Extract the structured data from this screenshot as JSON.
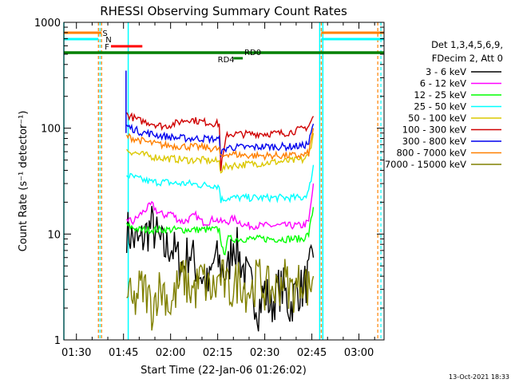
{
  "chart_data": {
    "type": "line",
    "title": "RHESSI Observing Summary Count Rates",
    "xlabel": "Start Time (22-Jan-06 01:26:02)",
    "ylabel": "Count Rate (s⁻¹ detector⁻¹)",
    "y_scale": "log",
    "ylim": [
      1,
      1000
    ],
    "xlim_minutes_after_0126": [
      0,
      102
    ],
    "x_ticks": [
      "01:30",
      "01:45",
      "02:00",
      "02:15",
      "02:30",
      "02:45",
      "03:00"
    ],
    "x_tick_minutes": [
      4,
      19,
      34,
      49,
      64,
      79,
      94
    ],
    "y_ticks": [
      "1",
      "10",
      "100",
      "1000"
    ],
    "y_tick_values": [
      1,
      10,
      100,
      1000
    ],
    "legend_header": [
      "Det 1,3,4,5,6,9,",
      "FDecim 2, Att 0"
    ],
    "series": [
      {
        "name": "3 - 6 keV",
        "color": "#000000",
        "level": 7,
        "x": [
          20,
          22,
          24,
          26,
          28,
          30,
          32,
          34,
          36,
          38,
          40,
          42,
          44,
          46,
          48,
          50,
          52,
          54,
          56,
          58,
          60,
          62,
          64,
          66,
          68,
          70,
          72,
          74,
          76,
          78,
          79.5
        ],
        "y": [
          11,
          9,
          8,
          10,
          12,
          9,
          7,
          8,
          6,
          5,
          7,
          5,
          4,
          3,
          6,
          5,
          4,
          9,
          6,
          4,
          3,
          2,
          3,
          2,
          3,
          3,
          2,
          3,
          3,
          4,
          6
        ]
      },
      {
        "name": "6 - 12 keV",
        "color": "#ff00ff",
        "level": 13,
        "x": [
          20,
          22,
          24,
          26,
          28,
          30,
          32,
          34,
          36,
          38,
          40,
          42,
          44,
          46,
          48,
          50,
          52,
          54,
          56,
          58,
          60,
          62,
          64,
          66,
          68,
          70,
          72,
          74,
          76,
          78,
          79.5
        ],
        "y": [
          14,
          13,
          15,
          17,
          19,
          16,
          15,
          16,
          14,
          13,
          14,
          15,
          13,
          13,
          14,
          13,
          13,
          14,
          13,
          12,
          12,
          12,
          12,
          12,
          12,
          12,
          12,
          12,
          12,
          13,
          30
        ]
      },
      {
        "name": "12 - 25 keV",
        "color": "#00ff00",
        "level": 11,
        "x": [
          20,
          24,
          28,
          32,
          36,
          40,
          44,
          48,
          49.5,
          51,
          52,
          56,
          60,
          64,
          68,
          72,
          76,
          78,
          79.5
        ],
        "y": [
          12,
          11,
          11,
          11,
          11,
          11,
          11,
          11,
          11,
          6,
          9,
          9,
          9,
          9,
          9,
          9,
          9,
          10,
          18
        ]
      },
      {
        "name": "25 - 50 keV",
        "color": "#00ffff",
        "level": 30,
        "x": [
          20,
          24,
          28,
          32,
          36,
          40,
          44,
          48,
          49.5,
          50,
          52,
          56,
          60,
          64,
          68,
          72,
          76,
          78,
          79.5
        ],
        "y": [
          36,
          33,
          31,
          31,
          30,
          30,
          29,
          29,
          28,
          21,
          22,
          22,
          22,
          22,
          22,
          22,
          22,
          25,
          45
        ]
      },
      {
        "name": "50 - 100 keV",
        "color": "#dcc800",
        "level": 50,
        "x": [
          20,
          24,
          28,
          32,
          36,
          40,
          44,
          48,
          49.5,
          50,
          52,
          56,
          60,
          64,
          68,
          72,
          76,
          78,
          79.5
        ],
        "y": [
          62,
          57,
          54,
          52,
          51,
          50,
          50,
          49,
          48,
          40,
          44,
          45,
          46,
          47,
          48,
          49,
          50,
          55,
          90
        ]
      },
      {
        "name": "100 - 300 keV",
        "color": "#d00000",
        "level": 120,
        "x": [
          20,
          22,
          24,
          26,
          28,
          30,
          32,
          34,
          36,
          38,
          40,
          42,
          44,
          46,
          48,
          49.5,
          50,
          52,
          54,
          56,
          58,
          60,
          62,
          64,
          66,
          68,
          70,
          72,
          74,
          76,
          78,
          79.5
        ],
        "y": [
          135,
          126,
          118,
          115,
          112,
          107,
          104,
          108,
          112,
          118,
          122,
          118,
          115,
          113,
          111,
          110,
          42,
          88,
          88,
          88,
          88,
          88,
          89,
          89,
          89,
          89,
          90,
          92,
          95,
          98,
          105,
          130
        ]
      },
      {
        "name": "300 - 800 keV",
        "color": "#0000ee",
        "level": 90,
        "x": [
          20,
          24,
          28,
          32,
          36,
          40,
          44,
          48,
          49.5,
          50,
          52,
          56,
          60,
          64,
          68,
          72,
          76,
          78,
          79.5
        ],
        "y": [
          105,
          93,
          88,
          84,
          81,
          80,
          80,
          79,
          78,
          57,
          66,
          66,
          66,
          67,
          67,
          67,
          68,
          72,
          110
        ]
      },
      {
        "name": "800 - 7000 keV",
        "color": "#ff8000",
        "level": 70,
        "x": [
          20,
          24,
          28,
          32,
          36,
          40,
          44,
          48,
          49.5,
          50,
          52,
          56,
          60,
          64,
          68,
          72,
          76,
          78,
          79.5
        ],
        "y": [
          84,
          77,
          72,
          69,
          68,
          67,
          66,
          64,
          63,
          52,
          58,
          56,
          55,
          55,
          55,
          55,
          55,
          58,
          100
        ]
      },
      {
        "name": "7000 - 15000 keV",
        "color": "#808000",
        "level": 3,
        "x": [
          20,
          22,
          24,
          26,
          28,
          30,
          32,
          34,
          36,
          38,
          40,
          42,
          44,
          46,
          48,
          50,
          52,
          54,
          56,
          58,
          60,
          62,
          64,
          66,
          68,
          70,
          72,
          74,
          76,
          78,
          79.5
        ],
        "y": [
          3,
          2,
          3,
          3,
          2,
          3,
          3,
          2,
          3,
          4,
          3,
          3,
          4,
          3,
          3,
          4,
          3,
          3,
          4,
          3,
          3,
          4,
          3,
          3,
          3,
          4,
          3,
          3,
          4,
          3,
          4
        ]
      }
    ],
    "flags": [
      {
        "label": "S",
        "color": "#ff8000",
        "intervals": [
          [
            0,
            12
          ],
          [
            82,
            102
          ]
        ]
      },
      {
        "label": "N",
        "color": "#00ffff",
        "intervals": [
          [
            0,
            11
          ],
          [
            82,
            102
          ]
        ]
      },
      {
        "label": "F",
        "color": "#ff0000",
        "intervals": [
          [
            15,
            25
          ]
        ]
      },
      {
        "label": "RD0",
        "color": "#008000",
        "intervals": [
          [
            0,
            102
          ]
        ]
      },
      {
        "label": "RD4",
        "color": "#008000",
        "intervals": [
          [
            54,
            57
          ]
        ]
      }
    ],
    "vertical_lines": [
      {
        "color": "#00ffff",
        "style": "solid",
        "x": [
          0,
          20.5,
          81.5,
          82.5
        ]
      },
      {
        "color": "#ff8000",
        "style": "dashed",
        "x": [
          11,
          12,
          82,
          100
        ]
      },
      {
        "color": "#00ffff",
        "style": "dashed",
        "x": [
          11.5,
          101
        ]
      }
    ],
    "spike": {
      "x": 19.8,
      "y": 350,
      "color": "#0000ee"
    },
    "grid": false,
    "legend_position": "right"
  },
  "footer_timestamp": "13-Oct-2021 18:33"
}
